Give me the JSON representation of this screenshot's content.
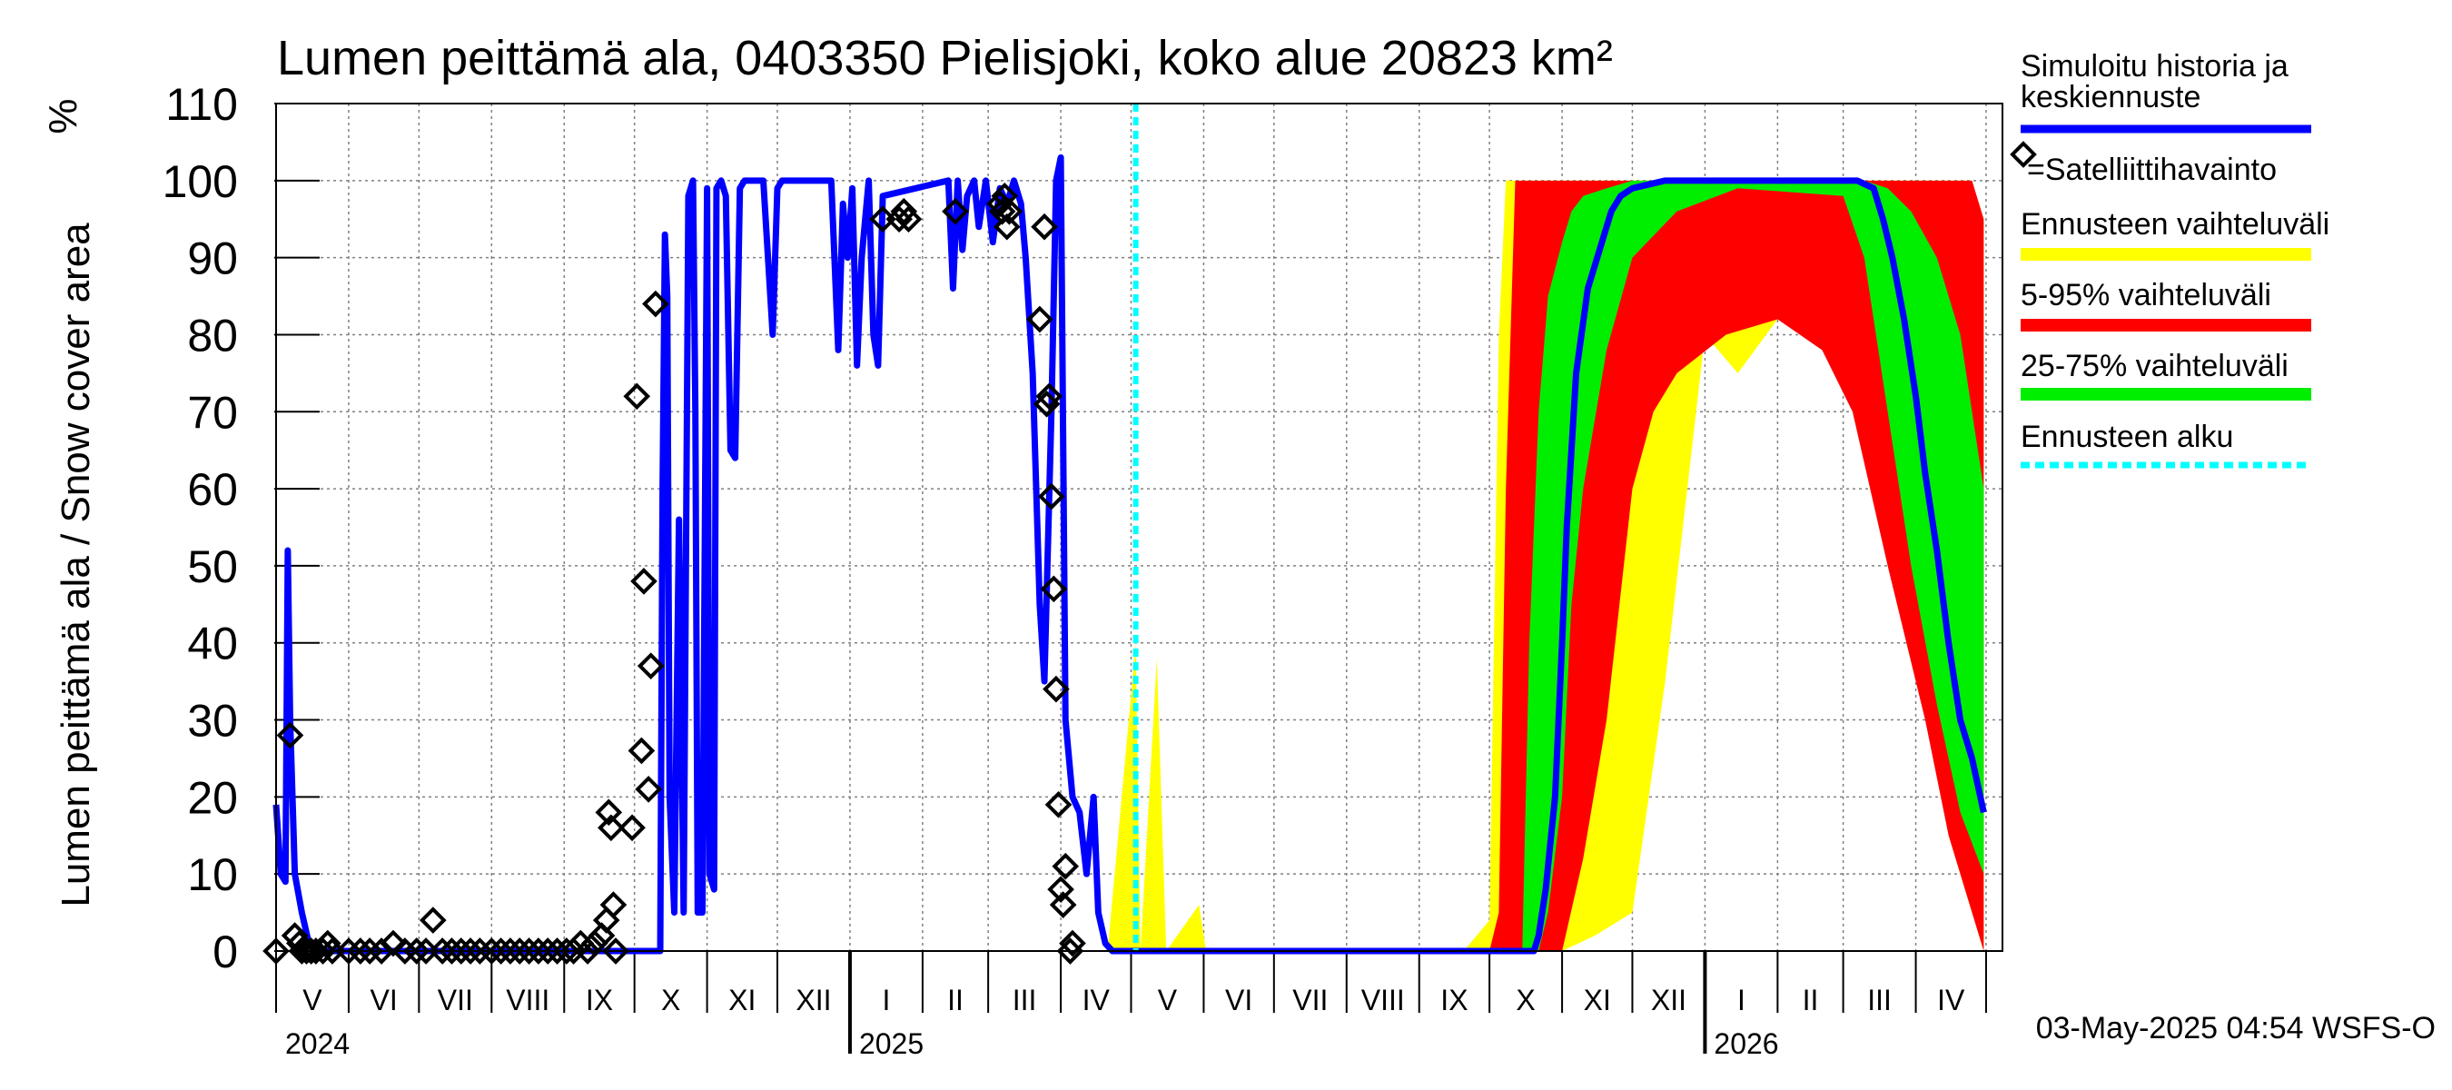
{
  "chart_data": {
    "type": "area",
    "title": "Lumen peittämä ala, 0403350 Pielisjoki, koko alue 20823 km²",
    "ylabel": "Lumen peittämä ala / Snow cover area",
    "yunit": "%",
    "ylim": [
      0,
      110
    ],
    "y_ticks": [
      "0",
      "10",
      "20",
      "30",
      "40",
      "50",
      "60",
      "70",
      "80",
      "90",
      "100",
      "110"
    ],
    "grid": true,
    "legend_position": "right",
    "month_labels": [
      "V",
      "VI",
      "VII",
      "VIII",
      "IX",
      "X",
      "XI",
      "XII",
      "I",
      "II",
      "III",
      "IV",
      "V",
      "VI",
      "VII",
      "VIII",
      "IX",
      "X",
      "XI",
      "XII",
      "I",
      "II",
      "III",
      "IV"
    ],
    "year_labels": [
      "2024",
      "2025",
      "2026"
    ],
    "timestamp": "03-May-2025 04:54 WSFS-O",
    "x_start": "2024-05-01",
    "x_end": "2026-05-08",
    "forecast_start": "2025-05-03",
    "legend": [
      {
        "label": "Simuloitu historia ja keskiennuste",
        "color": "#0000ff",
        "style": "line"
      },
      {
        "label": "=Satelliittihavainto",
        "color": "#000000",
        "style": "diamond"
      },
      {
        "label": "Ennusteen vaihteluväli",
        "color": "#ffff00",
        "style": "band"
      },
      {
        "label": "5-95% vaihteluväli",
        "color": "#ff0000",
        "style": "band"
      },
      {
        "label": "25-75% vaihteluväli",
        "color": "#00ee00",
        "style": "band"
      },
      {
        "label": "Ennusteen alku",
        "color": "#00ffff",
        "style": "dashed"
      }
    ],
    "series": [
      {
        "name": "Simuloitu historia ja keskiennuste",
        "color": "#0000ff",
        "points": [
          [
            "2024-05-01",
            19
          ],
          [
            "2024-05-03",
            10
          ],
          [
            "2024-05-05",
            9
          ],
          [
            "2024-05-06",
            52
          ],
          [
            "2024-05-07",
            30
          ],
          [
            "2024-05-09",
            10
          ],
          [
            "2024-05-12",
            5
          ],
          [
            "2024-05-15",
            1
          ],
          [
            "2024-05-20",
            0
          ],
          [
            "2024-10-08",
            0
          ],
          [
            "2024-10-12",
            0
          ],
          [
            "2024-10-13",
            60
          ],
          [
            "2024-10-14",
            93
          ],
          [
            "2024-10-15",
            85
          ],
          [
            "2024-10-16",
            20
          ],
          [
            "2024-10-18",
            5
          ],
          [
            "2024-10-20",
            56
          ],
          [
            "2024-10-22",
            5
          ],
          [
            "2024-10-24",
            98
          ],
          [
            "2024-10-26",
            100
          ],
          [
            "2024-10-27",
            70
          ],
          [
            "2024-10-28",
            5
          ],
          [
            "2024-10-30",
            5
          ],
          [
            "2024-11-01",
            99
          ],
          [
            "2024-11-02",
            10
          ],
          [
            "2024-11-04",
            8
          ],
          [
            "2024-11-05",
            99
          ],
          [
            "2024-11-07",
            100
          ],
          [
            "2024-11-09",
            98
          ],
          [
            "2024-11-11",
            65
          ],
          [
            "2024-11-13",
            64
          ],
          [
            "2024-11-15",
            99
          ],
          [
            "2024-11-17",
            100
          ],
          [
            "2024-11-25",
            100
          ],
          [
            "2024-11-29",
            80
          ],
          [
            "2024-12-01",
            99
          ],
          [
            "2024-12-03",
            100
          ],
          [
            "2024-12-24",
            100
          ],
          [
            "2024-12-27",
            78
          ],
          [
            "2024-12-29",
            97
          ],
          [
            "2024-12-31",
            90
          ],
          [
            "2025-01-02",
            99
          ],
          [
            "2025-01-04",
            76
          ],
          [
            "2025-01-06",
            90
          ],
          [
            "2025-01-09",
            100
          ],
          [
            "2025-01-11",
            80
          ],
          [
            "2025-01-13",
            76
          ],
          [
            "2025-01-15",
            98
          ],
          [
            "2025-02-12",
            100
          ],
          [
            "2025-02-14",
            86
          ],
          [
            "2025-02-16",
            100
          ],
          [
            "2025-02-18",
            91
          ],
          [
            "2025-02-20",
            98
          ],
          [
            "2025-02-23",
            100
          ],
          [
            "2025-02-25",
            94
          ],
          [
            "2025-02-28",
            100
          ],
          [
            "2025-03-03",
            92
          ],
          [
            "2025-03-06",
            99
          ],
          [
            "2025-03-09",
            97
          ],
          [
            "2025-03-12",
            100
          ],
          [
            "2025-03-15",
            97
          ],
          [
            "2025-03-17",
            90
          ],
          [
            "2025-03-20",
            75
          ],
          [
            "2025-03-23",
            45
          ],
          [
            "2025-03-25",
            35
          ],
          [
            "2025-03-28",
            70
          ],
          [
            "2025-03-30",
            100
          ],
          [
            "2025-04-01",
            103
          ],
          [
            "2025-04-03",
            30
          ],
          [
            "2025-04-06",
            20
          ],
          [
            "2025-04-09",
            18
          ],
          [
            "2025-04-12",
            10
          ],
          [
            "2025-04-15",
            20
          ],
          [
            "2025-04-17",
            5
          ],
          [
            "2025-04-20",
            1
          ],
          [
            "2025-04-23",
            0
          ],
          [
            "2025-10-20",
            0
          ],
          [
            "2025-10-22",
            2
          ],
          [
            "2025-10-25",
            8
          ],
          [
            "2025-10-29",
            20
          ],
          [
            "2025-11-01",
            40
          ],
          [
            "2025-11-03",
            55
          ],
          [
            "2025-11-07",
            75
          ],
          [
            "2025-11-12",
            86
          ],
          [
            "2025-11-18",
            92
          ],
          [
            "2025-11-22",
            96
          ],
          [
            "2025-11-26",
            98
          ],
          [
            "2025-12-01",
            99
          ],
          [
            "2025-12-08",
            99.5
          ],
          [
            "2025-12-15",
            100
          ],
          [
            "2026-03-07",
            100
          ],
          [
            "2026-03-14",
            99
          ],
          [
            "2026-03-18",
            95
          ],
          [
            "2026-03-22",
            90
          ],
          [
            "2026-03-27",
            82
          ],
          [
            "2026-04-01",
            72
          ],
          [
            "2026-04-05",
            62
          ],
          [
            "2026-04-10",
            52
          ],
          [
            "2026-04-15",
            40
          ],
          [
            "2026-04-20",
            30
          ],
          [
            "2026-04-25",
            25
          ],
          [
            "2026-04-30",
            18
          ]
        ]
      }
    ],
    "satellite_observations": [
      [
        "2024-05-01",
        0
      ],
      [
        "2024-05-07",
        28
      ],
      [
        "2024-05-09",
        2
      ],
      [
        "2024-05-11",
        1
      ],
      [
        "2024-05-12",
        0
      ],
      [
        "2024-05-14",
        0
      ],
      [
        "2024-05-16",
        0
      ],
      [
        "2024-05-18",
        0
      ],
      [
        "2024-05-21",
        0
      ],
      [
        "2024-05-23",
        1
      ],
      [
        "2024-05-25",
        0
      ],
      [
        "2024-06-01",
        0
      ],
      [
        "2024-06-06",
        0
      ],
      [
        "2024-06-10",
        0
      ],
      [
        "2024-06-15",
        0
      ],
      [
        "2024-06-20",
        1
      ],
      [
        "2024-06-25",
        0
      ],
      [
        "2024-06-30",
        0
      ],
      [
        "2024-07-04",
        0
      ],
      [
        "2024-07-07",
        4
      ],
      [
        "2024-07-11",
        0
      ],
      [
        "2024-07-15",
        0
      ],
      [
        "2024-07-19",
        0
      ],
      [
        "2024-07-23",
        0
      ],
      [
        "2024-07-27",
        0
      ],
      [
        "2024-08-01",
        0
      ],
      [
        "2024-08-05",
        0
      ],
      [
        "2024-08-09",
        0
      ],
      [
        "2024-08-13",
        0
      ],
      [
        "2024-08-17",
        0
      ],
      [
        "2024-08-21",
        0
      ],
      [
        "2024-08-25",
        0
      ],
      [
        "2024-08-29",
        0
      ],
      [
        "2024-09-02",
        0
      ],
      [
        "2024-09-05",
        0
      ],
      [
        "2024-09-08",
        1
      ],
      [
        "2024-09-11",
        0
      ],
      [
        "2024-09-14",
        1
      ],
      [
        "2024-09-17",
        2
      ],
      [
        "2024-09-19",
        4
      ],
      [
        "2024-09-20",
        18
      ],
      [
        "2024-09-21",
        16
      ],
      [
        "2024-09-22",
        6
      ],
      [
        "2024-09-23",
        0
      ],
      [
        "2024-09-30",
        16
      ],
      [
        "2024-10-02",
        72
      ],
      [
        "2024-10-04",
        26
      ],
      [
        "2024-10-05",
        48
      ],
      [
        "2024-10-07",
        21
      ],
      [
        "2024-10-08",
        37
      ],
      [
        "2024-10-10",
        84
      ],
      [
        "2025-01-15",
        95
      ],
      [
        "2025-01-22",
        95
      ],
      [
        "2025-01-24",
        96
      ],
      [
        "2025-01-26",
        95
      ],
      [
        "2025-02-15",
        96
      ],
      [
        "2025-03-06",
        97
      ],
      [
        "2025-03-07",
        96
      ],
      [
        "2025-03-08",
        98
      ],
      [
        "2025-03-09",
        94
      ],
      [
        "2025-03-10",
        96
      ],
      [
        "2025-03-23",
        82
      ],
      [
        "2025-03-25",
        94
      ],
      [
        "2025-03-26",
        71
      ],
      [
        "2025-03-27",
        72
      ],
      [
        "2025-03-28",
        59
      ],
      [
        "2025-03-29",
        47
      ],
      [
        "2025-03-30",
        34
      ],
      [
        "2025-03-31",
        19
      ],
      [
        "2025-04-01",
        8
      ],
      [
        "2025-04-02",
        6
      ],
      [
        "2025-04-03",
        11
      ],
      [
        "2025-04-05",
        0
      ],
      [
        "2025-04-06",
        1
      ]
    ],
    "bands": [
      {
        "name": "Ennusteen vaihteluväli",
        "color": "#ffff00",
        "points": [
          [
            "2025-04-21",
            0,
            0
          ],
          [
            "2025-05-03",
            0,
            40
          ],
          [
            "2025-05-05",
            0,
            0
          ],
          [
            "2025-05-12",
            0,
            38
          ],
          [
            "2025-05-16",
            0,
            0
          ],
          [
            "2025-05-30",
            0,
            6
          ],
          [
            "2025-06-02",
            0,
            0
          ],
          [
            "2025-09-20",
            0,
            0
          ],
          [
            "2025-10-01",
            0,
            4
          ],
          [
            "2025-10-05",
            0,
            80
          ],
          [
            "2025-10-08",
            0,
            100
          ],
          [
            "2025-10-20",
            0,
            100
          ],
          [
            "2025-11-01",
            0,
            100
          ],
          [
            "2025-11-15",
            2,
            100
          ],
          [
            "2025-12-01",
            5,
            100
          ],
          [
            "2025-12-15",
            35,
            100
          ],
          [
            "2026-01-01",
            80,
            100
          ],
          [
            "2026-01-15",
            75,
            100
          ],
          [
            "2026-02-01",
            82,
            100
          ],
          [
            "2026-03-01",
            78,
            100
          ],
          [
            "2026-03-15",
            60,
            100
          ],
          [
            "2026-03-25",
            50,
            100
          ],
          [
            "2026-04-05",
            32,
            100
          ],
          [
            "2026-04-15",
            15,
            100
          ],
          [
            "2026-04-25",
            5,
            100
          ],
          [
            "2026-04-30",
            0,
            95
          ]
        ]
      },
      {
        "name": "5-95% vaihteluväli",
        "color": "#ff0000",
        "points": [
          [
            "2025-10-01",
            0,
            0
          ],
          [
            "2025-10-05",
            0,
            5
          ],
          [
            "2025-10-08",
            0,
            60
          ],
          [
            "2025-10-12",
            0,
            100
          ],
          [
            "2025-10-20",
            0,
            100
          ],
          [
            "2025-11-01",
            0,
            100
          ],
          [
            "2025-11-10",
            12,
            100
          ],
          [
            "2025-11-20",
            30,
            100
          ],
          [
            "2025-12-01",
            60,
            100
          ],
          [
            "2025-12-10",
            70,
            100
          ],
          [
            "2025-12-20",
            75,
            100
          ],
          [
            "2026-01-10",
            80,
            100
          ],
          [
            "2026-02-01",
            82,
            100
          ],
          [
            "2026-02-20",
            78,
            100
          ],
          [
            "2026-03-05",
            70,
            100
          ],
          [
            "2026-03-20",
            50,
            100
          ],
          [
            "2026-04-05",
            30,
            100
          ],
          [
            "2026-04-15",
            15,
            100
          ],
          [
            "2026-04-25",
            5,
            100
          ],
          [
            "2026-04-30",
            0,
            95
          ]
        ]
      },
      {
        "name": "25-75% vaihteluväli",
        "color": "#00ee00",
        "points": [
          [
            "2025-10-15",
            0,
            0
          ],
          [
            "2025-10-18",
            0,
            40
          ],
          [
            "2025-10-22",
            0,
            70
          ],
          [
            "2025-10-26",
            5,
            85
          ],
          [
            "2025-11-01",
            20,
            92
          ],
          [
            "2025-11-05",
            45,
            96
          ],
          [
            "2025-11-10",
            60,
            98
          ],
          [
            "2025-11-20",
            78,
            99
          ],
          [
            "2025-12-01",
            90,
            100
          ],
          [
            "2025-12-20",
            96,
            100
          ],
          [
            "2026-01-15",
            99,
            100
          ],
          [
            "2026-03-01",
            98,
            100
          ],
          [
            "2026-03-10",
            90,
            100
          ],
          [
            "2026-03-20",
            70,
            99
          ],
          [
            "2026-03-30",
            50,
            96
          ],
          [
            "2026-04-10",
            32,
            90
          ],
          [
            "2026-04-20",
            18,
            80
          ],
          [
            "2026-04-30",
            10,
            60
          ]
        ]
      }
    ]
  }
}
